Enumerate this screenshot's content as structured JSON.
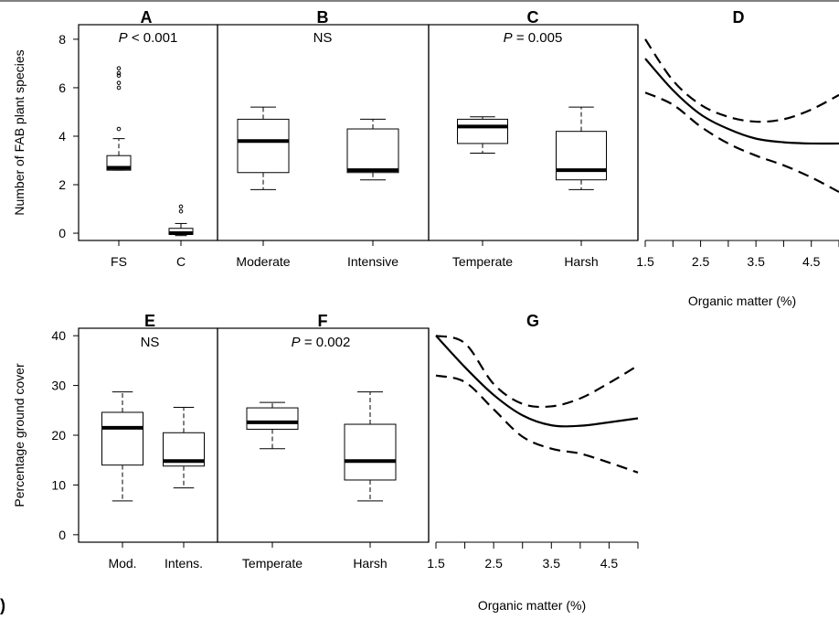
{
  "figure_label": ")",
  "chart_data": [
    {
      "type": "box",
      "panel": "A",
      "annotation": {
        "prefix": "P",
        "text": " < 0.001"
      },
      "ylabel": "Number of FAB plant species",
      "ylim": [
        -0.3,
        8.6
      ],
      "yticks": [
        0,
        2,
        4,
        6,
        8
      ],
      "categories": [
        "FS",
        "C"
      ],
      "boxes": [
        {
          "min": 2.6,
          "q1": 2.6,
          "median": 2.7,
          "q3": 3.2,
          "max": 3.9,
          "outliers": [
            4.3,
            6.0,
            6.2,
            6.5,
            6.6,
            6.8
          ]
        },
        {
          "min": -0.1,
          "q1": -0.05,
          "median": 0.0,
          "q3": 0.2,
          "max": 0.4,
          "outliers": [
            0.9,
            1.1
          ]
        }
      ]
    },
    {
      "type": "box",
      "panel": "B",
      "annotation": {
        "prefix": "",
        "text": "NS"
      },
      "ylim": [
        -0.3,
        8.6
      ],
      "categories": [
        "Moderate",
        "Intensive"
      ],
      "boxes": [
        {
          "min": 1.8,
          "q1": 2.5,
          "median": 3.8,
          "q3": 4.7,
          "max": 5.2,
          "outliers": []
        },
        {
          "min": 2.2,
          "q1": 2.5,
          "median": 2.6,
          "q3": 4.3,
          "max": 4.7,
          "outliers": []
        }
      ]
    },
    {
      "type": "box",
      "panel": "C",
      "annotation": {
        "prefix": "P",
        "text": " = 0.005"
      },
      "ylim": [
        -0.3,
        8.6
      ],
      "categories": [
        "Temperate",
        "Harsh"
      ],
      "boxes": [
        {
          "min": 3.3,
          "q1": 3.7,
          "median": 4.4,
          "q3": 4.7,
          "max": 4.8,
          "outliers": []
        },
        {
          "min": 1.8,
          "q1": 2.2,
          "median": 2.6,
          "q3": 4.2,
          "max": 5.2,
          "outliers": []
        }
      ]
    },
    {
      "type": "line",
      "panel": "D",
      "xlabel": "Organic matter (%)",
      "xlim": [
        1.5,
        5.0
      ],
      "ylim": [
        -0.3,
        8.6
      ],
      "xticks": [
        1.5,
        2.5,
        3.5,
        4.5
      ],
      "x": [
        1.5,
        2.0,
        2.5,
        3.0,
        3.5,
        4.0,
        4.5,
        5.0
      ],
      "series": [
        {
          "style": "solid",
          "values": [
            7.2,
            5.9,
            4.9,
            4.3,
            3.9,
            3.75,
            3.7,
            3.7
          ]
        },
        {
          "style": "dashed",
          "values": [
            8.0,
            6.3,
            5.3,
            4.8,
            4.6,
            4.7,
            5.1,
            5.7
          ]
        },
        {
          "style": "dashed",
          "values": [
            5.8,
            5.3,
            4.4,
            3.7,
            3.2,
            2.8,
            2.3,
            1.7
          ]
        }
      ]
    },
    {
      "type": "box",
      "panel": "E",
      "annotation": {
        "prefix": "",
        "text": "NS"
      },
      "ylabel": "Percentage ground cover",
      "ylim": [
        -1.5,
        41.5
      ],
      "yticks": [
        0,
        10,
        20,
        30,
        40
      ],
      "categories": [
        "Mod.",
        "Intens."
      ],
      "boxes": [
        {
          "min": 6.8,
          "q1": 14.0,
          "median": 21.5,
          "q3": 24.6,
          "max": 28.7,
          "outliers": []
        },
        {
          "min": 9.4,
          "q1": 13.8,
          "median": 14.8,
          "q3": 20.5,
          "max": 25.6,
          "outliers": []
        }
      ]
    },
    {
      "type": "box",
      "panel": "F",
      "annotation": {
        "prefix": "P",
        "text": " = 0.002"
      },
      "ylim": [
        -1.5,
        41.5
      ],
      "categories": [
        "Temperate",
        "Harsh"
      ],
      "boxes": [
        {
          "min": 17.3,
          "q1": 21.2,
          "median": 22.6,
          "q3": 25.5,
          "max": 26.6,
          "outliers": []
        },
        {
          "min": 6.8,
          "q1": 11.0,
          "median": 14.8,
          "q3": 22.2,
          "max": 28.7,
          "outliers": []
        }
      ]
    },
    {
      "type": "line",
      "panel": "G",
      "xlabel": "Organic matter (%)",
      "xlim": [
        1.5,
        5.0
      ],
      "ylim": [
        -1.5,
        41.5
      ],
      "xticks": [
        1.5,
        2.5,
        3.5,
        4.5
      ],
      "x": [
        1.5,
        2.0,
        2.5,
        3.0,
        3.5,
        4.0,
        4.5,
        5.0
      ],
      "series": [
        {
          "style": "solid",
          "values": [
            40.0,
            33.7,
            28.1,
            24.0,
            22.0,
            21.9,
            22.6,
            23.4
          ]
        },
        {
          "style": "dashed",
          "values": [
            40.0,
            38.5,
            30.3,
            26.3,
            25.8,
            27.4,
            30.5,
            34.0
          ]
        },
        {
          "style": "dashed",
          "values": [
            32.0,
            30.7,
            25.2,
            19.7,
            17.3,
            16.3,
            14.5,
            12.5
          ]
        }
      ]
    }
  ]
}
